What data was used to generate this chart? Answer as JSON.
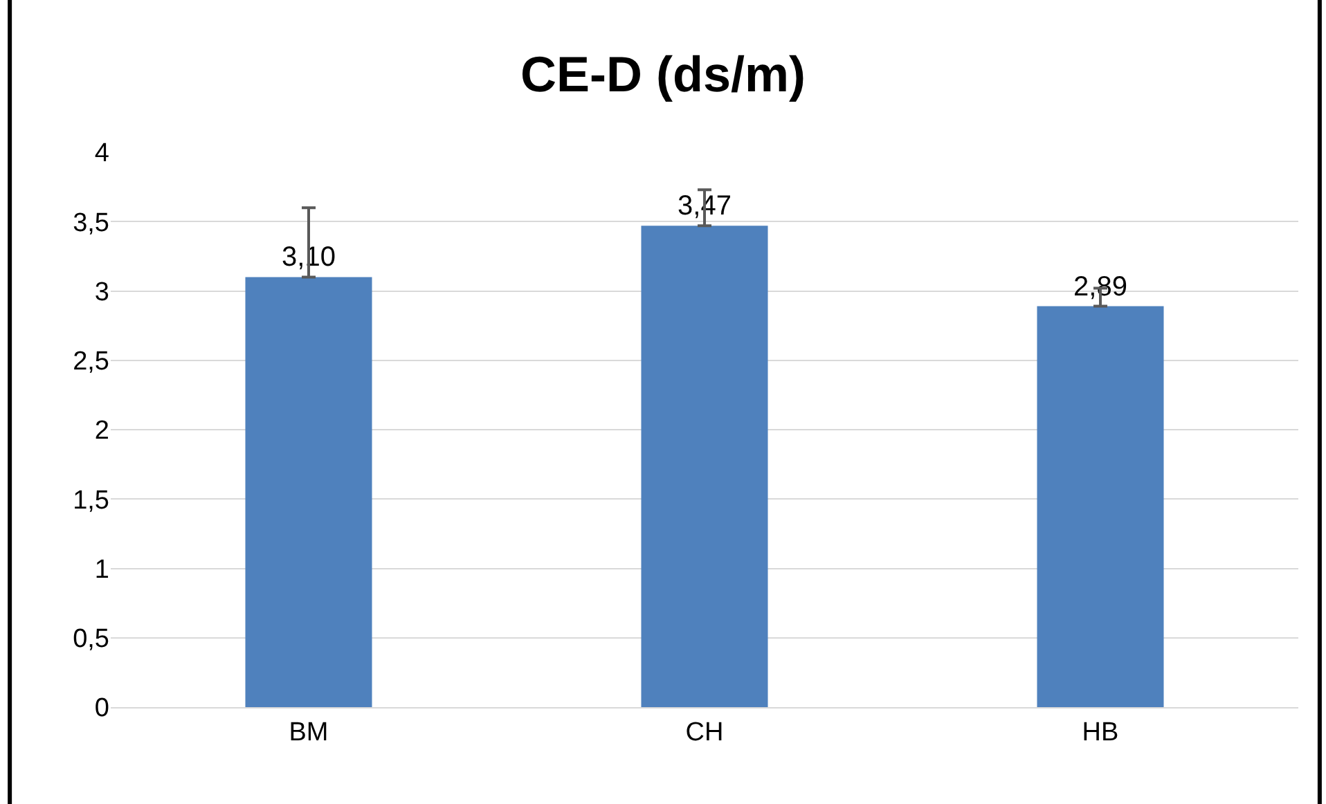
{
  "chart_data": {
    "type": "bar",
    "title": "CE-D (ds/m)",
    "categories": [
      "BM",
      "CH",
      "HB"
    ],
    "values": [
      3.1,
      3.47,
      2.89
    ],
    "value_labels": [
      "3,10",
      "3,47",
      "2,89"
    ],
    "errors": [
      [
        3.1,
        3.6
      ],
      [
        3.47,
        3.73
      ],
      [
        2.89,
        3.02
      ]
    ],
    "color": "#4f81bd",
    "ylim": [
      0,
      4
    ],
    "yticks": [
      0,
      {
        "value": 0.5,
        "label": "0,5"
      },
      1,
      {
        "value": 1.5,
        "label": "1,5"
      },
      2,
      {
        "value": 2.5,
        "label": "2,5"
      },
      3,
      {
        "value": 3.5,
        "label": "3,5"
      },
      4
    ],
    "grid": "y"
  }
}
